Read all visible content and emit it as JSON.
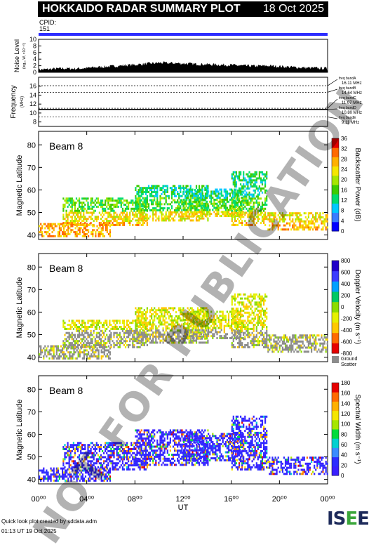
{
  "header": {
    "title": "HOKKAIDO RADAR SUMMARY PLOT",
    "date": "18 Oct 2025"
  },
  "cpid": {
    "label": "CPID:",
    "value": "151"
  },
  "colors": {
    "cpid_bar": "#2d2dff",
    "ground_scatter": "#8c8c8c"
  },
  "noise": {
    "ylabel": "Noise Level",
    "yunit": "(log₁₀ W, ×10⁻¹⁰)",
    "ticks": [
      "0",
      "2",
      "4",
      "6",
      "8",
      "10"
    ]
  },
  "freq": {
    "ylabel": "Frequency",
    "yunit": "(MHz)",
    "ticks": [
      "8",
      "10",
      "12",
      "14",
      "16"
    ],
    "bands": [
      {
        "name": "freq bandA",
        "value": "16.11 MHz",
        "mhz": 16.11
      },
      {
        "name": "freq bandB",
        "value": "14.64 MHz",
        "mhz": 14.64
      },
      {
        "name": "freq bandC",
        "value": "11.07 MHz",
        "mhz": 11.07
      },
      {
        "name": "freq bandD",
        "value": "10.80 MHz",
        "mhz": 10.8
      },
      {
        "name": "freq bandE",
        "value": "9.11 MHz",
        "mhz": 9.11
      }
    ]
  },
  "panels": [
    {
      "beam": "Beam  8",
      "ylabel": "Magnetic Latitude",
      "cblabel": "Backscatter Power (dB)",
      "cbticks": [
        "36",
        "32",
        "28",
        "24",
        "20",
        "16",
        "12",
        "8",
        "4",
        "0"
      ],
      "cmap": "power"
    },
    {
      "beam": "Beam  8",
      "ylabel": "Magnetic Latitude",
      "cblabel": "Doppler Velocity (m s⁻¹)",
      "cbticks": [
        "800",
        "600",
        "400",
        "200",
        "0",
        "-200",
        "-400",
        "-600",
        "-800"
      ],
      "cmap": "velocity",
      "gs_label": "Ground",
      "gs_label2": "Scatter"
    },
    {
      "beam": "Beam  8",
      "ylabel": "Magnetic Latitude",
      "cblabel": "Spectral Width (m s⁻¹)",
      "cbticks": [
        "180",
        "160",
        "140",
        "120",
        "100",
        "80",
        "60",
        "40",
        "20",
        "0"
      ],
      "cmap": "width"
    }
  ],
  "chart_data": {
    "type": "heatmap",
    "x_axis": {
      "label": "UT",
      "range_hours": [
        0,
        24
      ],
      "ticks": [
        "00⁰⁰",
        "04⁰⁰",
        "08⁰⁰",
        "12⁰⁰",
        "16⁰⁰",
        "20⁰⁰",
        "00⁰⁰"
      ]
    },
    "y_axis": {
      "label": "Magnetic Latitude",
      "range": [
        38,
        86
      ],
      "ticks": [
        "40",
        "50",
        "60",
        "70",
        "80"
      ]
    },
    "noise_series": [
      {
        "h": 0,
        "v": 0.8
      },
      {
        "h": 1,
        "v": 1.0
      },
      {
        "h": 2,
        "v": 1.2
      },
      {
        "h": 3,
        "v": 1.1
      },
      {
        "h": 4,
        "v": 1.3
      },
      {
        "h": 5,
        "v": 1.6
      },
      {
        "h": 6,
        "v": 1.8
      },
      {
        "h": 7,
        "v": 2.1
      },
      {
        "h": 8,
        "v": 2.3
      },
      {
        "h": 9,
        "v": 2.6
      },
      {
        "h": 10,
        "v": 2.9
      },
      {
        "h": 11,
        "v": 2.8
      },
      {
        "h": 12,
        "v": 2.7
      },
      {
        "h": 13,
        "v": 2.5
      },
      {
        "h": 14,
        "v": 2.4
      },
      {
        "h": 15,
        "v": 2.3
      },
      {
        "h": 16,
        "v": 2.2
      },
      {
        "h": 17,
        "v": 2.0
      },
      {
        "h": 18,
        "v": 1.9
      },
      {
        "h": 19,
        "v": 2.0
      },
      {
        "h": 20,
        "v": 1.8
      },
      {
        "h": 21,
        "v": 1.6
      },
      {
        "h": 22,
        "v": 1.4
      },
      {
        "h": 23,
        "v": 1.3
      },
      {
        "h": 24,
        "v": 1.2
      }
    ],
    "scatter_regions": [
      {
        "h0": 0,
        "h1": 6,
        "lat0": 39,
        "lat1": 45
      },
      {
        "h0": 2,
        "h1": 9,
        "lat0": 44,
        "lat1": 56
      },
      {
        "h0": 8,
        "h1": 14,
        "lat0": 46,
        "lat1": 62
      },
      {
        "h0": 12,
        "h1": 17,
        "lat0": 48,
        "lat1": 60
      },
      {
        "h0": 16,
        "h1": 19,
        "lat0": 44,
        "lat1": 68
      },
      {
        "h0": 19,
        "h1": 24,
        "lat0": 42,
        "lat1": 50
      }
    ]
  },
  "footer": {
    "line1": "Quick look plot created by sddata.adm",
    "line2": "01:13 UT 19 Oct 2025"
  },
  "logo": {
    "text_a": "IS",
    "text_b": "E",
    "text_c": "E"
  },
  "watermark": "NOT FOR PUBLICATION"
}
